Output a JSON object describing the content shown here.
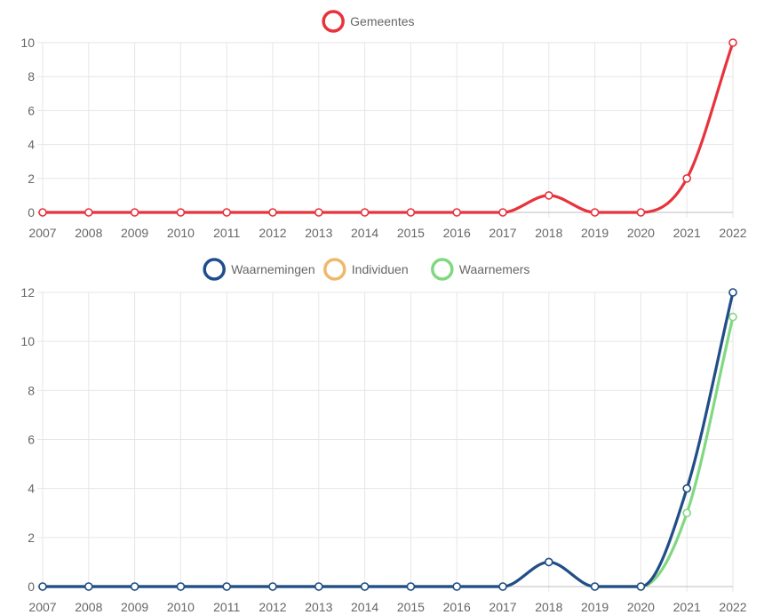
{
  "chart_data": [
    {
      "type": "line",
      "categories": [
        "2007",
        "2008",
        "2009",
        "2010",
        "2011",
        "2012",
        "2013",
        "2014",
        "2015",
        "2016",
        "2017",
        "2018",
        "2019",
        "2020",
        "2021",
        "2022"
      ],
      "series": [
        {
          "name": "Gemeentes",
          "values": [
            0,
            0,
            0,
            0,
            0,
            0,
            0,
            0,
            0,
            0,
            0,
            1,
            0,
            0,
            2,
            10
          ],
          "color": "#e8323c"
        }
      ],
      "ylim": [
        0,
        10
      ],
      "yticks": [
        0,
        2,
        4,
        6,
        8,
        10
      ],
      "grid": true,
      "legend_position": "top-center"
    },
    {
      "type": "line",
      "categories": [
        "2007",
        "2008",
        "2009",
        "2010",
        "2011",
        "2012",
        "2013",
        "2014",
        "2015",
        "2016",
        "2017",
        "2018",
        "2019",
        "2020",
        "2021",
        "2022"
      ],
      "series": [
        {
          "name": "Waarnemingen",
          "values": [
            0,
            0,
            0,
            0,
            0,
            0,
            0,
            0,
            0,
            0,
            0,
            1,
            0,
            0,
            4,
            12
          ],
          "color": "#1f4e8c"
        },
        {
          "name": "Individuen",
          "values": [
            0,
            0,
            0,
            0,
            0,
            0,
            0,
            0,
            0,
            0,
            0,
            1,
            0,
            0,
            4,
            12
          ],
          "color": "#f0b868"
        },
        {
          "name": "Waarnemers",
          "values": [
            0,
            0,
            0,
            0,
            0,
            0,
            0,
            0,
            0,
            0,
            0,
            1,
            0,
            0,
            3,
            11
          ],
          "color": "#80d880"
        }
      ],
      "ylim": [
        0,
        12
      ],
      "yticks": [
        0,
        2,
        4,
        6,
        8,
        10,
        12
      ],
      "grid": true,
      "legend_position": "top-center"
    }
  ]
}
